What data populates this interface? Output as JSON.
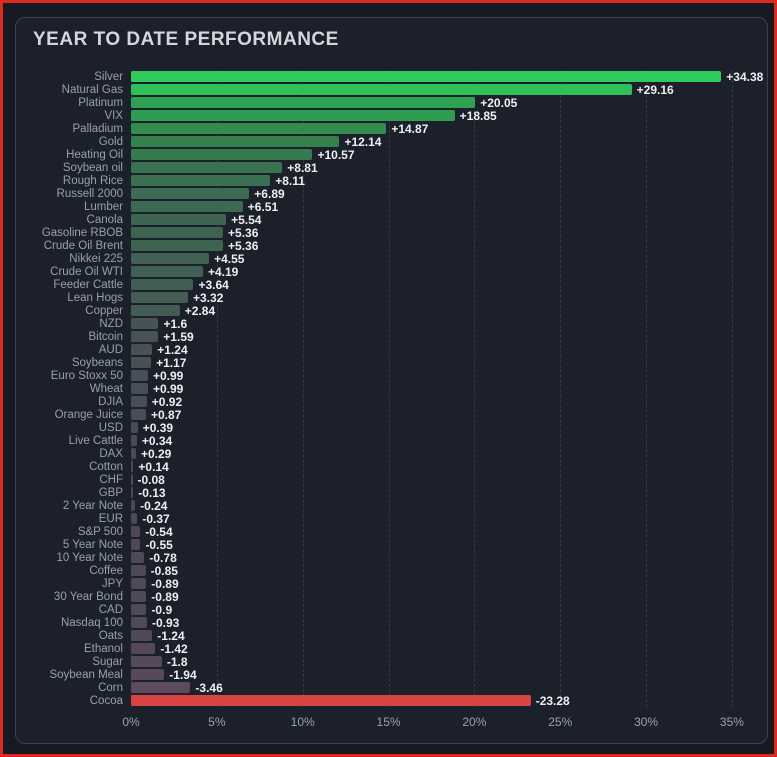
{
  "frame": {
    "border_color": "#e0291e"
  },
  "chart_data": {
    "type": "bar",
    "orientation": "horizontal",
    "title": "YEAR TO DATE PERFORMANCE",
    "xlabel": "",
    "ylabel": "",
    "xlim": [
      0,
      35.5
    ],
    "grid": "dashed-vertical",
    "legend": "none",
    "note": "bar length encodes absolute value of YTD % change; color encodes sign/magnitude",
    "categories": [
      "Silver",
      "Natural Gas",
      "Platinum",
      "VIX",
      "Palladium",
      "Gold",
      "Heating Oil",
      "Soybean oil",
      "Rough Rice",
      "Russell 2000",
      "Lumber",
      "Canola",
      "Gasoline RBOB",
      "Crude Oil Brent",
      "Nikkei 225",
      "Crude Oil WTI",
      "Feeder Cattle",
      "Lean Hogs",
      "Copper",
      "NZD",
      "Bitcoin",
      "AUD",
      "Soybeans",
      "Euro Stoxx 50",
      "Wheat",
      "DJIA",
      "Orange Juice",
      "USD",
      "Live Cattle",
      "DAX",
      "Cotton",
      "CHF",
      "GBP",
      "2 Year Note",
      "EUR",
      "S&P 500",
      "5 Year Note",
      "10 Year Note",
      "Coffee",
      "JPY",
      "30 Year Bond",
      "CAD",
      "Nasdaq 100",
      "Oats",
      "Ethanol",
      "Sugar",
      "Soybean Meal",
      "Corn",
      "Cocoa"
    ],
    "values": [
      34.38,
      29.16,
      20.05,
      18.85,
      14.87,
      12.14,
      10.57,
      8.81,
      8.11,
      6.89,
      6.51,
      5.54,
      5.36,
      5.36,
      4.55,
      4.19,
      3.64,
      3.32,
      2.84,
      1.6,
      1.59,
      1.24,
      1.17,
      0.99,
      0.99,
      0.92,
      0.87,
      0.39,
      0.34,
      0.29,
      0.14,
      -0.08,
      -0.13,
      -0.24,
      -0.37,
      -0.54,
      -0.55,
      -0.78,
      -0.85,
      -0.89,
      -0.89,
      -0.9,
      -0.93,
      -1.24,
      -1.42,
      -1.8,
      -1.94,
      -3.46,
      -23.28
    ],
    "value_labels": [
      "+34.38",
      "+29.16",
      "+20.05",
      "+18.85",
      "+14.87",
      "+12.14",
      "+10.57",
      "+8.81",
      "+8.11",
      "+6.89",
      "+6.51",
      "+5.54",
      "+5.36",
      "+5.36",
      "+4.55",
      "+4.19",
      "+3.64",
      "+3.32",
      "+2.84",
      "+1.6",
      "+1.59",
      "+1.24",
      "+1.17",
      "+0.99",
      "+0.99",
      "+0.92",
      "+0.87",
      "+0.39",
      "+0.34",
      "+0.29",
      "+0.14",
      "-0.08",
      "-0.13",
      "-0.24",
      "-0.37",
      "-0.54",
      "-0.55",
      "-0.78",
      "-0.85",
      "-0.89",
      "-0.89",
      "-0.9",
      "-0.93",
      "-1.24",
      "-1.42",
      "-1.8",
      "-1.94",
      "-3.46",
      "-23.28"
    ],
    "x_ticks": [
      "0%",
      "5%",
      "10%",
      "15%",
      "20%",
      "25%",
      "30%",
      "35%"
    ],
    "x_tick_values": [
      0,
      5,
      10,
      15,
      20,
      25,
      30,
      35
    ],
    "color_stops": [
      [
        -23.28,
        "#d94442"
      ],
      [
        -4.0,
        "#5e4b5f"
      ],
      [
        -2.0,
        "#564a5a"
      ],
      [
        -0.5,
        "#4e4855"
      ],
      [
        0.0,
        "#4a4a54"
      ],
      [
        0.5,
        "#484d56"
      ],
      [
        3.0,
        "#445b55"
      ],
      [
        5.5,
        "#3d6551"
      ],
      [
        8.0,
        "#3a6f52"
      ],
      [
        12.0,
        "#35804d"
      ],
      [
        16.0,
        "#31914f"
      ],
      [
        20.0,
        "#2ea251"
      ],
      [
        25.0,
        "#2eb455"
      ],
      [
        30.0,
        "#2fc45a"
      ],
      [
        34.38,
        "#30cb5d"
      ]
    ]
  }
}
